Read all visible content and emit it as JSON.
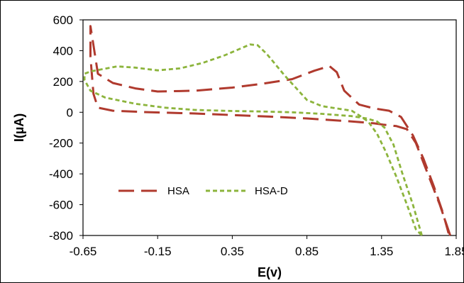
{
  "chart_data": {
    "type": "line",
    "title": "",
    "xlabel": "E(v)",
    "ylabel": "I(µA)",
    "xlim": [
      -0.65,
      1.85
    ],
    "ylim": [
      -800,
      600
    ],
    "x_ticks": [
      "-0.65",
      "-0.15",
      "0.35",
      "0.85",
      "1.35",
      "1.85"
    ],
    "y_ticks": [
      "600",
      "400",
      "200",
      "0",
      "-200",
      "-400",
      "-600",
      "-800"
    ],
    "grid": false,
    "legend_position": "bottom-left-inside",
    "series": [
      {
        "name": "HSA",
        "color": "#b03a2e",
        "dash": "long-dash",
        "x": [
          1.81,
          1.74,
          1.66,
          1.58,
          1.52,
          1.45,
          1.36,
          1.3,
          1.18,
          1.0,
          0.85,
          0.6,
          0.35,
          0.1,
          -0.2,
          -0.45,
          -0.55,
          -0.58,
          -0.6,
          -0.6,
          -0.55,
          -0.45,
          -0.3,
          -0.15,
          0.1,
          0.35,
          0.55,
          0.75,
          0.9,
          1.0,
          1.05,
          1.1,
          1.2,
          1.3,
          1.4,
          1.48,
          1.56,
          1.63,
          1.7,
          1.76,
          1.8
        ],
        "y": [
          -800,
          -600,
          -400,
          -200,
          -110,
          -90,
          -80,
          -72,
          -62,
          -50,
          -40,
          -28,
          -18,
          -8,
          0,
          10,
          30,
          120,
          360,
          560,
          250,
          190,
          155,
          135,
          140,
          160,
          185,
          215,
          270,
          300,
          260,
          140,
          50,
          25,
          10,
          -30,
          -150,
          -300,
          -480,
          -650,
          -790
        ]
      },
      {
        "name": "HSA-D",
        "color": "#8cb43c",
        "dash": "short-dash",
        "x": [
          1.62,
          1.56,
          1.49,
          1.43,
          1.37,
          1.32,
          1.25,
          1.15,
          0.95,
          0.75,
          0.55,
          0.35,
          0.1,
          -0.1,
          -0.3,
          -0.5,
          -0.6,
          -0.64,
          -0.64,
          -0.6,
          -0.52,
          -0.42,
          -0.3,
          -0.15,
          0.0,
          0.15,
          0.3,
          0.42,
          0.47,
          0.52,
          0.58,
          0.7,
          0.85,
          0.95,
          1.05,
          1.15,
          1.2,
          1.26,
          1.32,
          1.38,
          1.45,
          1.52,
          1.58,
          1.62
        ],
        "y": [
          -800,
          -600,
          -400,
          -210,
          -100,
          -60,
          -40,
          -25,
          -10,
          0,
          5,
          8,
          15,
          30,
          55,
          95,
          140,
          210,
          250,
          265,
          280,
          298,
          290,
          272,
          285,
          320,
          370,
          420,
          440,
          435,
          380,
          240,
          80,
          40,
          25,
          10,
          -20,
          -60,
          -140,
          -260,
          -420,
          -600,
          -760,
          -800
        ]
      }
    ]
  }
}
